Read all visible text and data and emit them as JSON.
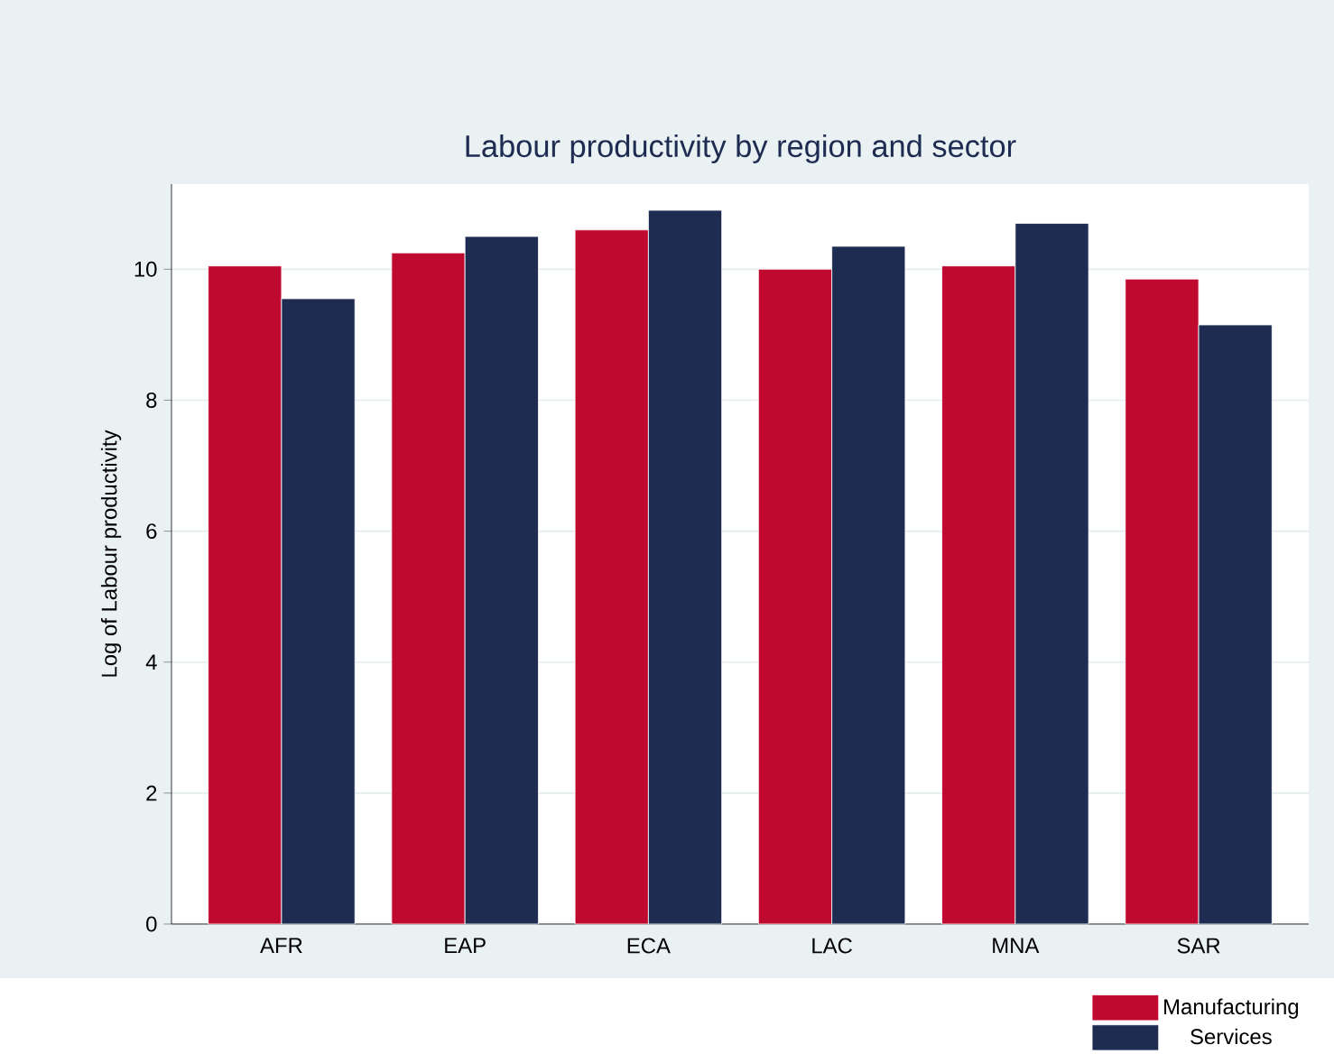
{
  "chart_data": {
    "type": "bar",
    "title": "Labour productivity by region and sector",
    "ylabel": "Log of Labour productivity",
    "categories": [
      "AFR",
      "EAP",
      "ECA",
      "LAC",
      "MNA",
      "SAR"
    ],
    "series": [
      {
        "name": "Manufacturing",
        "color": "#c0092f",
        "values": [
          10.05,
          10.25,
          10.6,
          10.0,
          10.05,
          9.85
        ]
      },
      {
        "name": "Services",
        "color": "#1f2c52",
        "values": [
          9.55,
          10.5,
          10.9,
          10.35,
          10.7,
          9.15
        ]
      }
    ],
    "ylim": [
      0,
      11.3
    ],
    "yticks": [
      0,
      2,
      4,
      6,
      8,
      10
    ],
    "grid": "y",
    "legend": "bottom right"
  }
}
